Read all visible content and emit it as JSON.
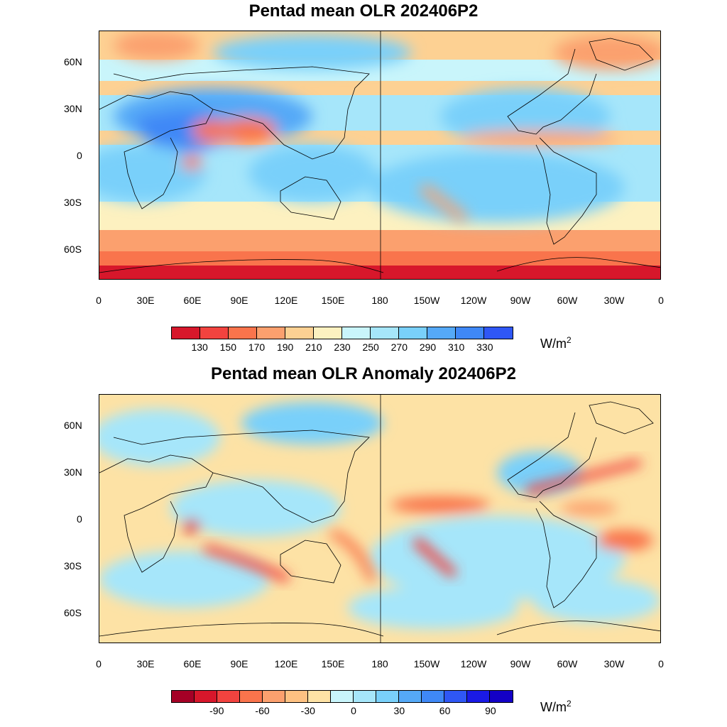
{
  "panels": [
    {
      "id": "top",
      "title": "Pentad mean OLR 202406P2",
      "units_base": "W/m",
      "units_sup": "2",
      "colorbar": {
        "colors": [
          "#d7172b",
          "#f2433f",
          "#f9744c",
          "#fba06e",
          "#fdd193",
          "#fdf1c0",
          "#c9f5fb",
          "#a6e6fa",
          "#79d0fa",
          "#55a9f7",
          "#3f88f6",
          "#2f57f5"
        ],
        "labels": [
          "130",
          "150",
          "170",
          "190",
          "210",
          "230",
          "250",
          "270",
          "290",
          "310",
          "330"
        ]
      }
    },
    {
      "id": "bottom",
      "title": "Pentad mean OLR Anomaly 202406P2",
      "units_base": "W/m",
      "units_sup": "2",
      "colorbar": {
        "colors": [
          "#a50026",
          "#d7172b",
          "#f2433f",
          "#f9744c",
          "#fba06e",
          "#fdc182",
          "#fde2a5",
          "#c9f5fb",
          "#a6e6fa",
          "#79d0fa",
          "#55a9f7",
          "#3f88f6",
          "#2f57f5",
          "#1a1ae6",
          "#1300c6"
        ],
        "labels": [
          "-90",
          "-60",
          "-30",
          "0",
          "30",
          "60",
          "90"
        ]
      }
    }
  ],
  "axes": {
    "lon_labels": [
      "0",
      "30E",
      "60E",
      "90E",
      "120E",
      "150E",
      "180",
      "150W",
      "120W",
      "90W",
      "60W",
      "30W",
      "0"
    ],
    "lat_labels": [
      "60N",
      "30N",
      "0",
      "30S",
      "60S"
    ]
  }
}
